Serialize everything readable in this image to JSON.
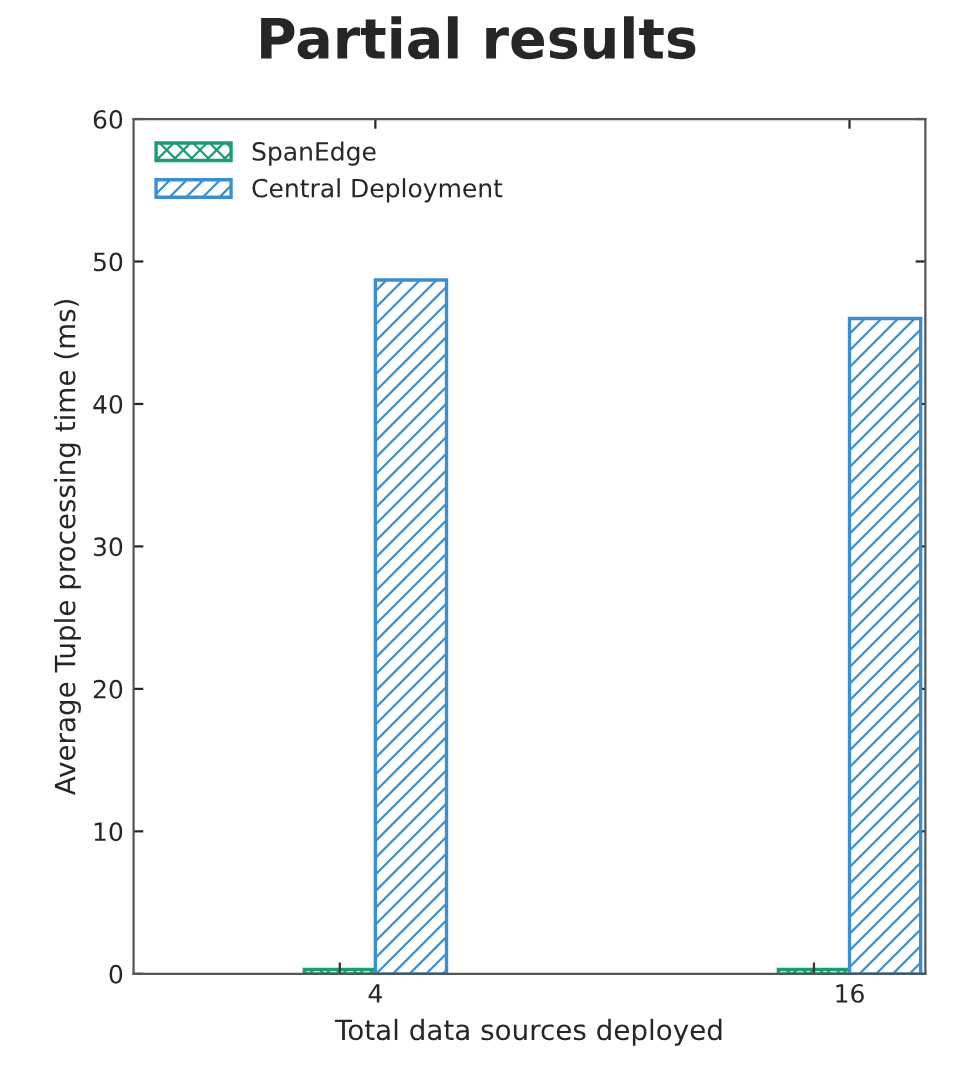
{
  "chart_data": {
    "type": "bar",
    "title": "Partial results",
    "xlabel": "Total data sources deployed",
    "ylabel": "Average Tuple processing time (ms)",
    "categories": [
      "4",
      "16"
    ],
    "series": [
      {
        "name": "SpanEdge",
        "color": "#1a9e6e",
        "values": [
          0.3,
          0.3
        ],
        "errors": [
          0.5,
          0.5
        ]
      },
      {
        "name": "Central Deployment",
        "color": "#3a8fd0",
        "values": [
          48.7,
          46.0
        ]
      }
    ],
    "ylim": [
      0,
      60
    ],
    "yticks": [
      0,
      10,
      20,
      30,
      40,
      50,
      60
    ],
    "grid": false,
    "legend": "top left"
  }
}
